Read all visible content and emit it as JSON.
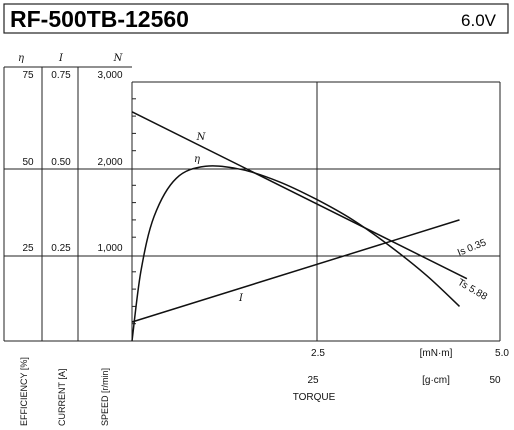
{
  "header": {
    "model": "RF-500TB-12560",
    "voltage": "6.0V"
  },
  "chart_data": {
    "type": "line",
    "left_axes": [
      {
        "symbol": "η",
        "label": "EFFICIENCY [%]",
        "ticks": [
          "25",
          "50",
          "75"
        ],
        "range": [
          0,
          75
        ]
      },
      {
        "symbol": "I",
        "label": "CURRENT [A]",
        "ticks": [
          "0.25",
          "0.50",
          "0.75"
        ],
        "range": [
          0,
          0.75
        ]
      },
      {
        "symbol": "N",
        "label": "SPEED [r/min]",
        "ticks": [
          "1,000",
          "2,000",
          "3,000"
        ],
        "range": [
          0,
          3000
        ]
      }
    ],
    "xlabel": "TORQUE",
    "x_axes": [
      {
        "unit": "[mN·m]",
        "ticks": [
          "2.5",
          "5.0"
        ],
        "range": [
          0,
          5.0
        ]
      },
      {
        "unit": "[g·cm]",
        "ticks": [
          "25",
          "50"
        ],
        "range": [
          0,
          50
        ]
      }
    ],
    "grid": true,
    "series": [
      {
        "name": "N",
        "x": [
          0,
          4.55
        ],
        "y": [
          2650,
          720
        ]
      },
      {
        "name": "I",
        "x": [
          0,
          4.45
        ],
        "y": [
          0.055,
          0.35
        ]
      },
      {
        "name": "η",
        "x": [
          0,
          0.12,
          0.3,
          0.6,
          1.0,
          1.5,
          2.0,
          2.5,
          3.0,
          3.5,
          4.0,
          4.45
        ],
        "y": [
          0,
          20,
          36,
          47,
          50.5,
          49.5,
          46,
          41,
          35,
          27.5,
          19,
          10
        ]
      }
    ],
    "annotations": [
      {
        "text": "Is 0.35",
        "series": "I"
      },
      {
        "text": "Ts 5.88",
        "series": "N"
      }
    ]
  }
}
